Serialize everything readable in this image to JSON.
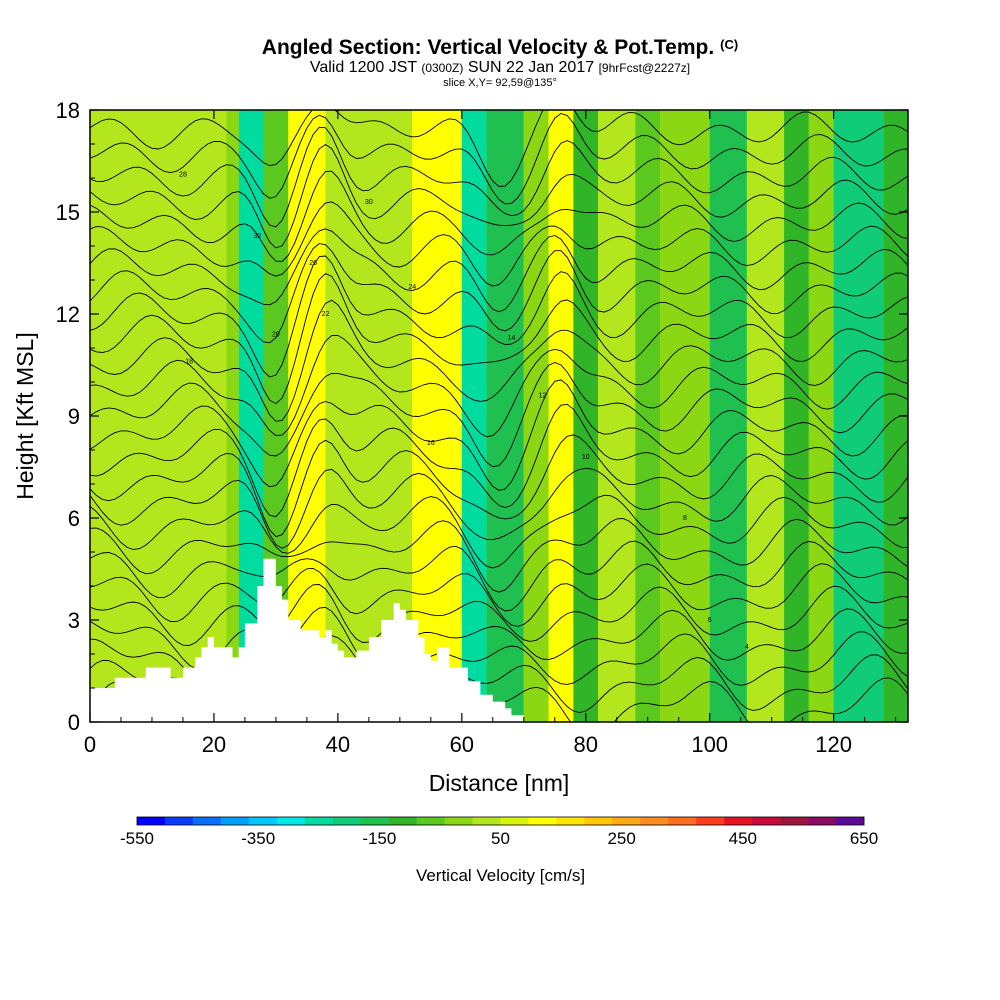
{
  "title": {
    "main": "Angled Section: Vertical Velocity & Pot.Temp.",
    "mark": "(C)",
    "line2_a": "Valid 1200 JST",
    "line2_b": "(0300Z)",
    "line2_c": "SUN 22 Jan 2017",
    "line2_d": "[9hrFcst@2227z]",
    "line3": "slice X,Y= 92,59@135°"
  },
  "chart_data": {
    "type": "heatmap",
    "xlabel": "Distance [nm]",
    "ylabel": "Height [Kft MSL]",
    "xlim": [
      0,
      132
    ],
    "ylim": [
      0,
      18
    ],
    "xticks": [
      0,
      20,
      40,
      60,
      80,
      100,
      120
    ],
    "yticks": [
      0,
      3,
      6,
      9,
      12,
      15,
      18
    ],
    "colorbar": {
      "label": "Vertical Velocity [cm/s]",
      "min": -550,
      "max": 650,
      "step": 50,
      "tick_labels": [
        "-550",
        "-350",
        "-150",
        "50",
        "250",
        "450",
        "650"
      ],
      "colors": [
        "#0000ff",
        "#0a3cff",
        "#0a6eff",
        "#00a0ff",
        "#00c8ff",
        "#00e8e8",
        "#00dca0",
        "#10cc78",
        "#20c050",
        "#30b428",
        "#5ac81e",
        "#8cd714",
        "#b4e61e",
        "#d8f50a",
        "#ffff00",
        "#ffe600",
        "#ffc800",
        "#ffaa14",
        "#ff8c1e",
        "#ff6e1e",
        "#ff3c1e",
        "#e61423",
        "#c80a3c",
        "#a0143c",
        "#8c0a64",
        "#5a0a96"
      ]
    },
    "velocity_bands": [
      {
        "x": [
          0,
          10
        ],
        "value": 50
      },
      {
        "x": [
          10,
          22
        ],
        "value": 90
      },
      {
        "x": [
          22,
          24
        ],
        "value": 30
      },
      {
        "x": [
          24,
          28
        ],
        "value": -220
      },
      {
        "x": [
          28,
          32
        ],
        "value": -30
      },
      {
        "x": [
          32,
          38
        ],
        "value": 160
      },
      {
        "x": [
          38,
          48
        ],
        "value": 60
      },
      {
        "x": [
          48,
          52
        ],
        "value": 80
      },
      {
        "x": [
          52,
          60
        ],
        "value": 150
      },
      {
        "x": [
          60,
          64
        ],
        "value": -230
      },
      {
        "x": [
          64,
          70
        ],
        "value": -120
      },
      {
        "x": [
          70,
          74
        ],
        "value": 40
      },
      {
        "x": [
          74,
          78
        ],
        "value": 180
      },
      {
        "x": [
          78,
          82
        ],
        "value": -100
      },
      {
        "x": [
          82,
          88
        ],
        "value": 70
      },
      {
        "x": [
          88,
          92
        ],
        "value": -50
      },
      {
        "x": [
          92,
          100
        ],
        "value": 20
      },
      {
        "x": [
          100,
          106
        ],
        "value": -110
      },
      {
        "x": [
          106,
          112
        ],
        "value": 80
      },
      {
        "x": [
          112,
          116
        ],
        "value": -60
      },
      {
        "x": [
          116,
          120
        ],
        "value": 10
      },
      {
        "x": [
          120,
          128
        ],
        "value": -160
      },
      {
        "x": [
          128,
          132
        ],
        "value": -60
      }
    ],
    "isentrope_labels": [
      "28",
      "32",
      "30",
      "26",
      "24",
      "22",
      "20",
      "18",
      "16",
      "14",
      "12",
      "10",
      "8",
      "6",
      "4"
    ],
    "terrain": {
      "x": [
        0,
        0,
        4,
        4,
        9,
        9,
        13,
        13,
        15,
        15,
        17,
        17,
        18,
        18,
        19,
        19,
        20,
        20,
        23,
        23,
        24,
        24,
        25,
        25,
        27,
        27,
        28,
        28,
        30,
        30,
        31,
        31,
        32,
        32,
        34,
        34,
        37,
        37,
        38,
        38,
        39,
        39,
        40,
        40,
        41,
        41,
        43,
        43,
        45,
        45,
        47,
        47,
        49,
        49,
        50,
        50,
        51,
        51,
        53,
        53,
        54,
        54,
        55,
        55,
        56,
        56,
        58,
        58,
        61,
        61,
        63,
        63,
        65,
        65,
        67,
        67,
        68,
        68,
        70,
        70,
        72
      ],
      "y": [
        0.0,
        1.0,
        1.0,
        1.3,
        1.3,
        1.6,
        1.6,
        1.3,
        1.3,
        1.6,
        1.6,
        1.9,
        1.9,
        2.2,
        2.2,
        2.5,
        2.5,
        2.2,
        2.2,
        1.9,
        1.9,
        2.2,
        2.2,
        2.9,
        2.9,
        4.0,
        4.0,
        4.8,
        4.8,
        4.0,
        4.0,
        3.6,
        3.6,
        3.0,
        3.0,
        2.7,
        2.7,
        2.5,
        2.5,
        2.7,
        2.7,
        2.3,
        2.3,
        2.1,
        2.1,
        1.9,
        1.9,
        2.1,
        2.1,
        2.5,
        2.5,
        3.0,
        3.0,
        3.5,
        3.5,
        3.3,
        3.3,
        3.0,
        3.0,
        2.5,
        2.5,
        2.0,
        2.0,
        1.8,
        1.8,
        2.2,
        2.2,
        1.6,
        1.6,
        1.2,
        1.2,
        0.8,
        0.8,
        0.6,
        0.6,
        0.4,
        0.4,
        0.2,
        0.2,
        0.0,
        0.0
      ]
    }
  }
}
